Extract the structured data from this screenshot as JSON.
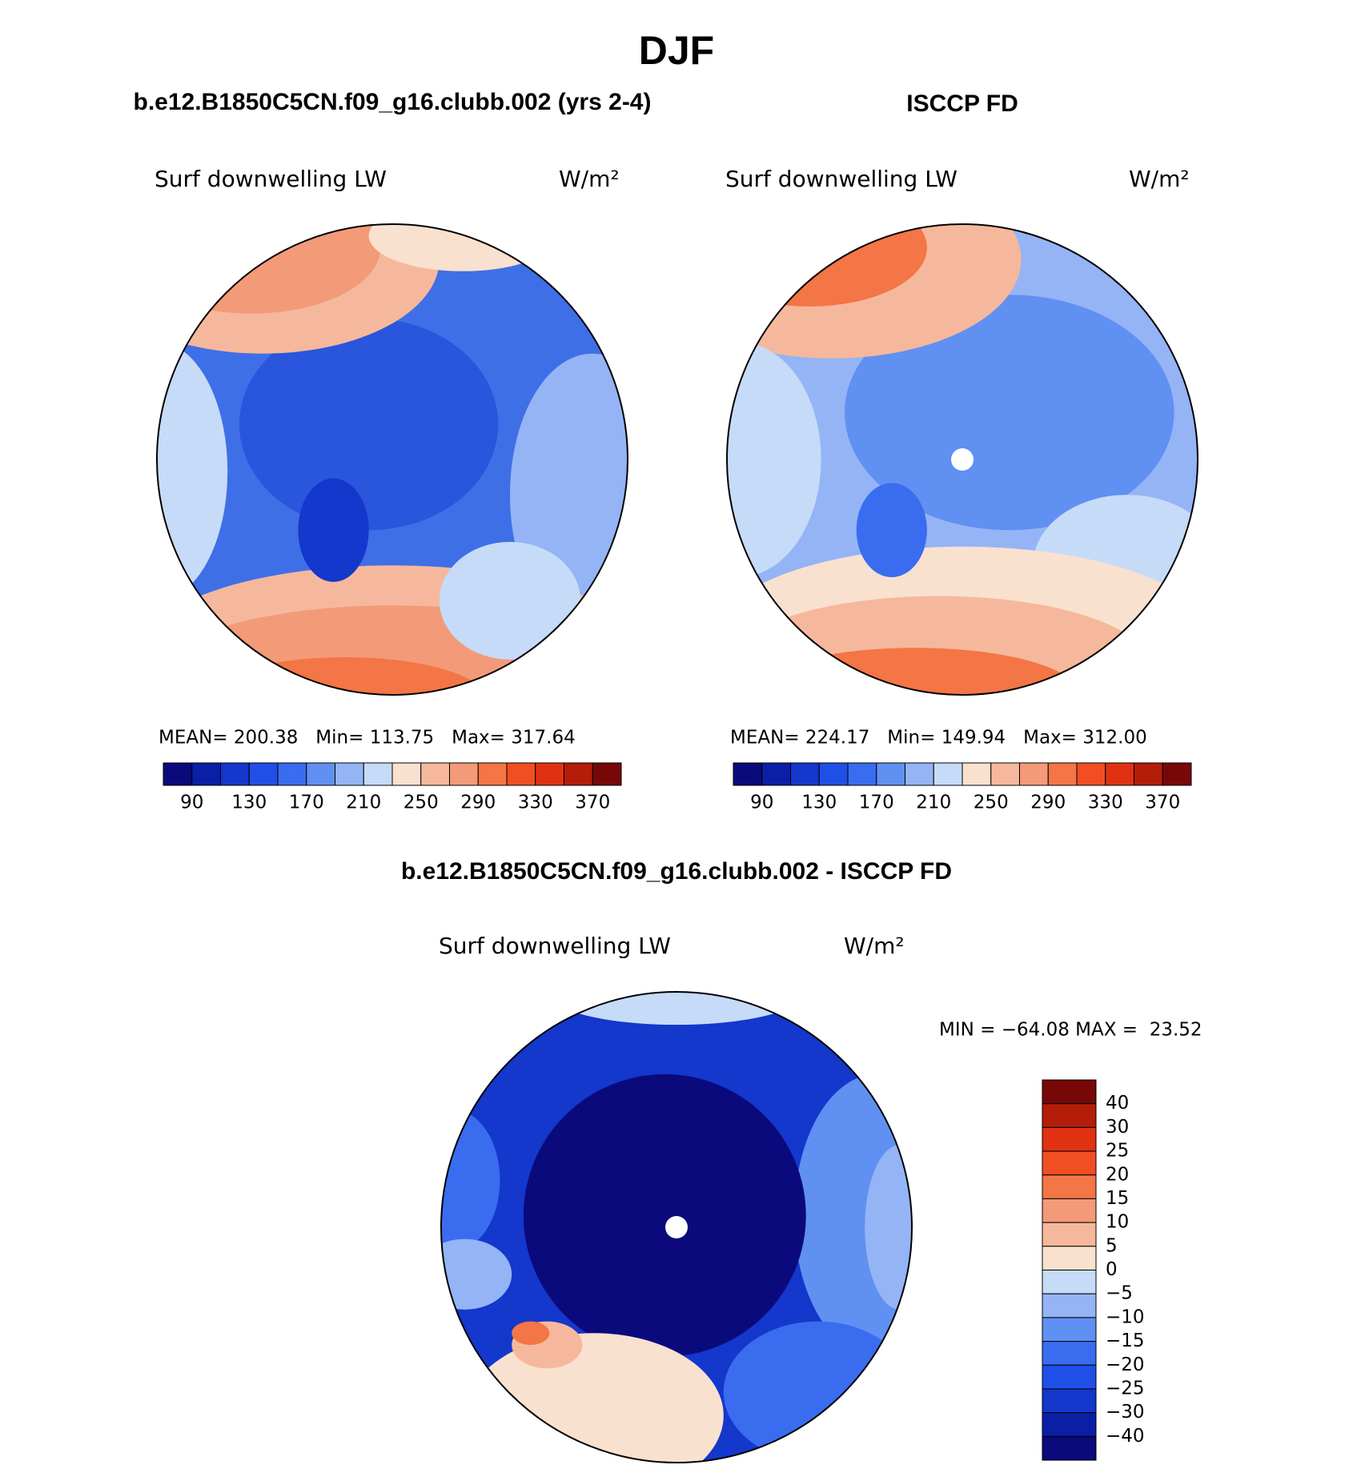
{
  "header": {
    "title": "DJF"
  },
  "panels": [
    {
      "title": "b.e12.B1850C5CN.f09_g16.clubb.002 (yrs 2-4)",
      "variable": "Surf downwelling LW",
      "units": "W/m²",
      "stats": "MEAN= 200.38   Min= 113.75   Max= 317.64",
      "colorbar": {
        "labels": [
          90,
          130,
          170,
          210,
          250,
          290,
          330,
          370
        ],
        "colors": [
          "#0a0a7d",
          "#0b1fa6",
          "#1437cc",
          "#1f4fe6",
          "#3a6cf0",
          "#6090f2",
          "#94b4f5",
          "#c6dbf8",
          "#f9e1cf",
          "#f6b89c",
          "#f39a78",
          "#f47545",
          "#f24e23",
          "#e03212",
          "#b31d0a",
          "#780808"
        ]
      }
    },
    {
      "title": "ISCCP FD",
      "variable": "Surf downwelling LW",
      "units": "W/m²",
      "stats": "MEAN= 224.17   Min= 149.94   Max= 312.00",
      "colorbar": {
        "labels": [
          90,
          130,
          170,
          210,
          250,
          290,
          330,
          370
        ],
        "colors": [
          "#0a0a7d",
          "#0b1fa6",
          "#1437cc",
          "#1f4fe6",
          "#3a6cf0",
          "#6090f2",
          "#94b4f5",
          "#c6dbf8",
          "#f9e1cf",
          "#f6b89c",
          "#f39a78",
          "#f47545",
          "#f24e23",
          "#e03212",
          "#b31d0a",
          "#780808"
        ]
      }
    }
  ],
  "difference": {
    "title": "b.e12.B1850C5CN.f09_g16.clubb.002 - ISCCP FD",
    "variable": "Surf downwelling LW",
    "units": "W/m²",
    "stats": "MIN = −64.08 MAX =  23.52",
    "colorbar": {
      "labels": [
        "40",
        "30",
        "25",
        "20",
        "15",
        "10",
        "5",
        "0",
        "−5",
        "−10",
        "−15",
        "−20",
        "−25",
        "−30",
        "−40"
      ],
      "colors": [
        "#780808",
        "#b31d0a",
        "#e03212",
        "#f24e23",
        "#f47545",
        "#f39a78",
        "#f6b89c",
        "#f9e1cf",
        "#c6dbf8",
        "#94b4f5",
        "#6090f2",
        "#3a6cf0",
        "#1f4fe6",
        "#1437cc",
        "#0b1fa6",
        "#0a0a7d"
      ]
    }
  }
}
